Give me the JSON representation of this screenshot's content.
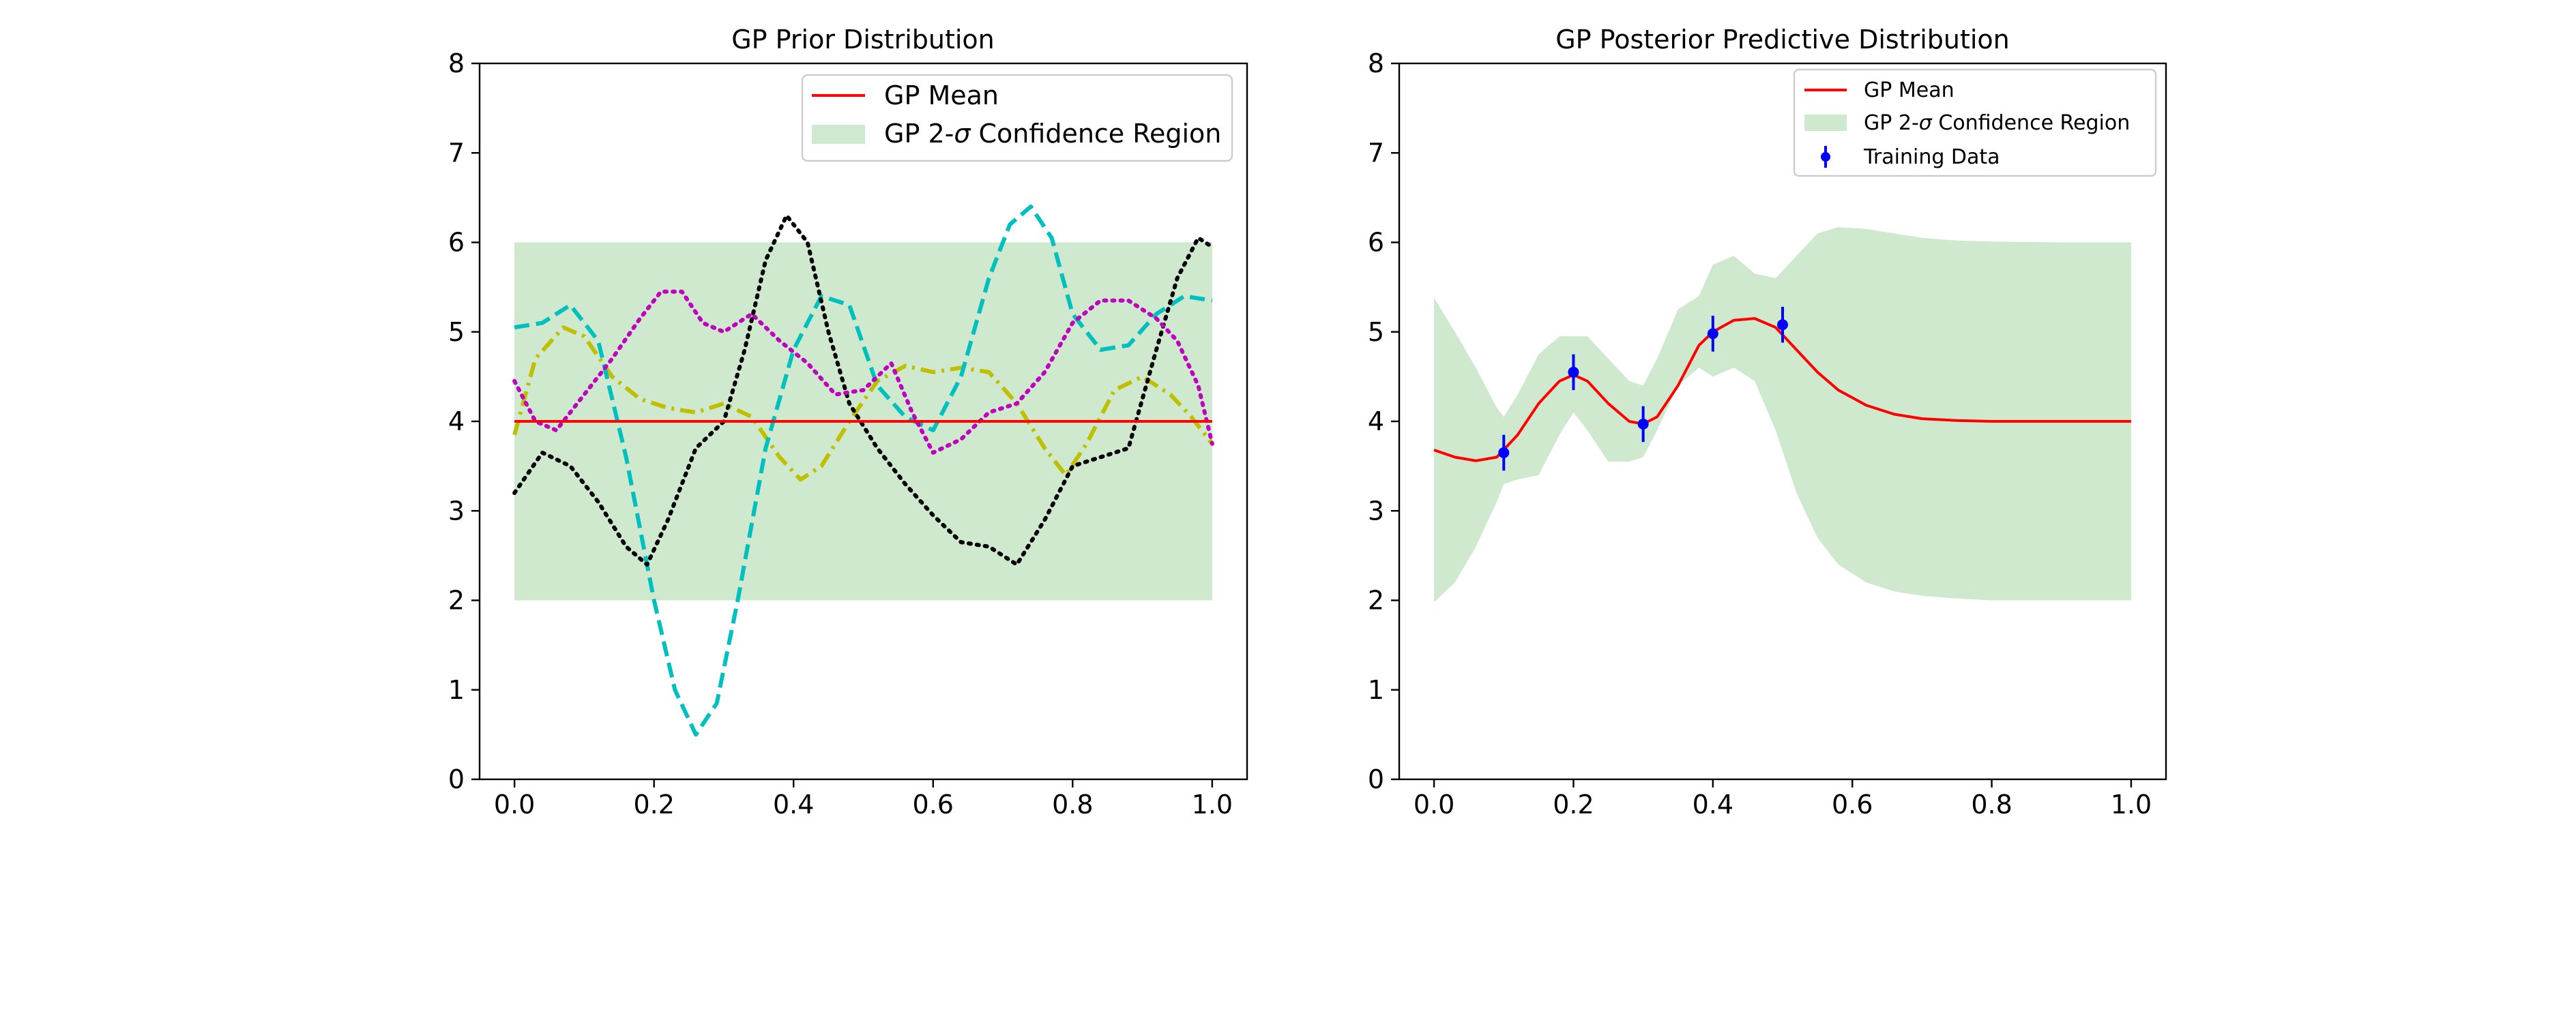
{
  "chart_data": [
    {
      "type": "line",
      "title": "GP Prior Distribution",
      "xlabel": "",
      "ylabel": "",
      "xlim": [
        -0.05,
        1.05
      ],
      "ylim": [
        0,
        8
      ],
      "xticks": [
        "0.0",
        "0.2",
        "0.4",
        "0.6",
        "0.8",
        "1.0"
      ],
      "yticks": [
        "0",
        "1",
        "2",
        "3",
        "4",
        "5",
        "6",
        "7",
        "8"
      ],
      "grid": false,
      "legend_position": "top-right",
      "legend": {
        "mean_label": "GP Mean",
        "region_label_prefix": "GP 2-",
        "region_label_symbol": "σ",
        "region_label_suffix": " Confidence Region"
      },
      "mean": {
        "x": [
          0,
          1
        ],
        "y": [
          4,
          4
        ],
        "color": "#ff0000"
      },
      "confidence_band": {
        "x": [
          0,
          1
        ],
        "lower": [
          2,
          2
        ],
        "upper": [
          6,
          6
        ],
        "color": "#2ca02c",
        "alpha": 0.23
      },
      "samples": [
        {
          "color": "#bfbf00",
          "style": "dashdot",
          "x": [
            0.0,
            0.03,
            0.07,
            0.1,
            0.14,
            0.18,
            0.22,
            0.26,
            0.3,
            0.34,
            0.38,
            0.41,
            0.44,
            0.48,
            0.52,
            0.56,
            0.6,
            0.64,
            0.68,
            0.72,
            0.76,
            0.79,
            0.82,
            0.86,
            0.9,
            0.94,
            0.97,
            1.0
          ],
          "y": [
            3.85,
            4.7,
            5.05,
            4.95,
            4.5,
            4.25,
            4.15,
            4.1,
            4.2,
            4.05,
            3.6,
            3.35,
            3.5,
            4.0,
            4.45,
            4.62,
            4.55,
            4.6,
            4.55,
            4.2,
            3.7,
            3.4,
            3.75,
            4.35,
            4.5,
            4.3,
            4.05,
            3.75
          ]
        },
        {
          "color": "#00bfbf",
          "style": "dashed",
          "x": [
            0.0,
            0.04,
            0.08,
            0.12,
            0.16,
            0.2,
            0.23,
            0.26,
            0.29,
            0.32,
            0.36,
            0.4,
            0.44,
            0.48,
            0.52,
            0.56,
            0.6,
            0.64,
            0.68,
            0.71,
            0.74,
            0.77,
            0.8,
            0.84,
            0.88,
            0.92,
            0.96,
            1.0
          ],
          "y": [
            5.05,
            5.1,
            5.3,
            4.9,
            3.6,
            2.0,
            1.0,
            0.5,
            0.85,
            2.0,
            3.7,
            4.8,
            5.4,
            5.3,
            4.4,
            4.05,
            3.9,
            4.5,
            5.6,
            6.2,
            6.4,
            6.05,
            5.2,
            4.8,
            4.85,
            5.2,
            5.4,
            5.35
          ]
        },
        {
          "color": "#000000",
          "style": "dotted",
          "x": [
            0.0,
            0.04,
            0.08,
            0.12,
            0.16,
            0.19,
            0.22,
            0.26,
            0.3,
            0.33,
            0.36,
            0.39,
            0.42,
            0.45,
            0.48,
            0.52,
            0.56,
            0.6,
            0.64,
            0.68,
            0.72,
            0.76,
            0.8,
            0.84,
            0.88,
            0.92,
            0.95,
            0.98,
            1.0
          ],
          "y": [
            3.2,
            3.65,
            3.5,
            3.1,
            2.6,
            2.4,
            2.9,
            3.7,
            4.0,
            4.8,
            5.8,
            6.3,
            6.0,
            5.0,
            4.2,
            3.7,
            3.3,
            2.95,
            2.65,
            2.6,
            2.4,
            2.9,
            3.5,
            3.6,
            3.7,
            4.8,
            5.6,
            6.05,
            5.95
          ]
        },
        {
          "color": "#bf00bf",
          "style": "dotted",
          "x": [
            0.0,
            0.03,
            0.06,
            0.1,
            0.14,
            0.18,
            0.21,
            0.24,
            0.27,
            0.3,
            0.34,
            0.38,
            0.42,
            0.46,
            0.5,
            0.54,
            0.57,
            0.6,
            0.64,
            0.68,
            0.72,
            0.76,
            0.8,
            0.84,
            0.88,
            0.92,
            0.95,
            0.98,
            1.0
          ],
          "y": [
            4.45,
            4.0,
            3.9,
            4.3,
            4.7,
            5.15,
            5.45,
            5.45,
            5.1,
            5.0,
            5.2,
            4.9,
            4.65,
            4.3,
            4.35,
            4.65,
            4.1,
            3.65,
            3.8,
            4.1,
            4.2,
            4.55,
            5.1,
            5.35,
            5.35,
            5.15,
            4.9,
            4.4,
            3.75
          ]
        }
      ]
    },
    {
      "type": "line",
      "title": "GP Posterior Predictive Distribution",
      "xlabel": "",
      "ylabel": "",
      "xlim": [
        -0.05,
        1.05
      ],
      "ylim": [
        0,
        8
      ],
      "xticks": [
        "0.0",
        "0.2",
        "0.4",
        "0.6",
        "0.8",
        "1.0"
      ],
      "yticks": [
        "0",
        "1",
        "2",
        "3",
        "4",
        "5",
        "6",
        "7",
        "8"
      ],
      "grid": false,
      "legend_position": "top-right",
      "legend": {
        "mean_label": "GP Mean",
        "region_label_prefix": "GP 2-",
        "region_label_symbol": "σ",
        "region_label_suffix": " Confidence Region",
        "data_label": "Training Data"
      },
      "mean": {
        "color": "#ff0000",
        "x": [
          0.0,
          0.03,
          0.06,
          0.09,
          0.12,
          0.15,
          0.18,
          0.2,
          0.22,
          0.25,
          0.28,
          0.3,
          0.32,
          0.35,
          0.38,
          0.4,
          0.43,
          0.46,
          0.49,
          0.52,
          0.55,
          0.58,
          0.62,
          0.66,
          0.7,
          0.75,
          0.8,
          0.9,
          1.0
        ],
        "y": [
          3.68,
          3.6,
          3.56,
          3.6,
          3.85,
          4.2,
          4.45,
          4.52,
          4.45,
          4.2,
          4.0,
          3.97,
          4.05,
          4.4,
          4.85,
          5.0,
          5.13,
          5.15,
          5.05,
          4.8,
          4.55,
          4.35,
          4.18,
          4.08,
          4.03,
          4.01,
          4.0,
          4.0,
          4.0
        ]
      },
      "confidence_band": {
        "color": "#2ca02c",
        "alpha": 0.23,
        "x": [
          0.0,
          0.03,
          0.06,
          0.09,
          0.1,
          0.12,
          0.15,
          0.18,
          0.2,
          0.22,
          0.25,
          0.28,
          0.3,
          0.32,
          0.35,
          0.38,
          0.4,
          0.43,
          0.46,
          0.49,
          0.52,
          0.55,
          0.58,
          0.62,
          0.66,
          0.7,
          0.75,
          0.8,
          0.9,
          1.0
        ],
        "lower": [
          1.98,
          2.2,
          2.6,
          3.1,
          3.3,
          3.35,
          3.4,
          3.85,
          4.1,
          3.9,
          3.55,
          3.55,
          3.6,
          3.9,
          4.4,
          4.6,
          4.5,
          4.6,
          4.45,
          3.9,
          3.2,
          2.7,
          2.4,
          2.2,
          2.1,
          2.05,
          2.02,
          2.0,
          2.0,
          2.0
        ],
        "upper": [
          5.38,
          5.0,
          4.6,
          4.15,
          4.05,
          4.3,
          4.75,
          4.95,
          4.95,
          4.95,
          4.7,
          4.45,
          4.4,
          4.7,
          5.25,
          5.4,
          5.75,
          5.85,
          5.65,
          5.6,
          5.85,
          6.1,
          6.17,
          6.15,
          6.1,
          6.05,
          6.02,
          6.01,
          6.0,
          6.0
        ]
      },
      "training_data": {
        "color": "#0000ff",
        "x": [
          0.1,
          0.2,
          0.3,
          0.4,
          0.5
        ],
        "y": [
          3.65,
          4.55,
          3.97,
          4.98,
          5.08
        ],
        "yerr": [
          0.2,
          0.2,
          0.2,
          0.2,
          0.2
        ]
      }
    }
  ]
}
